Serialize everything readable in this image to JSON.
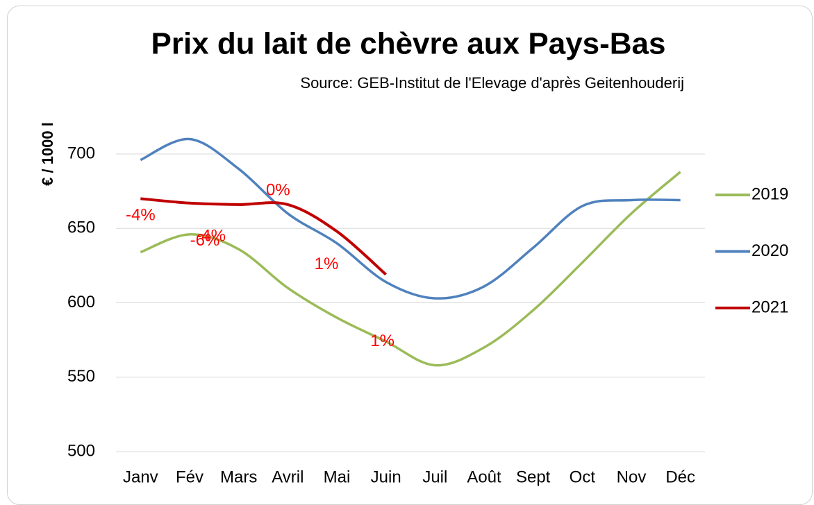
{
  "chart_data": {
    "type": "line",
    "title": "Prix du lait de chèvre aux Pays-Bas",
    "subtitle": "Source: GEB-Institut de l'Elevage d'après Geitenhouderij",
    "y_label": "€ / 1000 l",
    "categories": [
      "Janv",
      "Fév",
      "Mars",
      "Avril",
      "Mai",
      "Juin",
      "Juil",
      "Août",
      "Sept",
      "Oct",
      "Nov",
      "Déc"
    ],
    "series": [
      {
        "name": "2019",
        "color": "#9bbb59",
        "values": [
          634,
          646,
          636,
          610,
          590,
          574,
          558,
          570,
          595,
          627,
          660,
          688
        ]
      },
      {
        "name": "2020",
        "color": "#4f81bd",
        "values": [
          696,
          710,
          690,
          660,
          640,
          614,
          603,
          611,
          637,
          665,
          669,
          669
        ]
      },
      {
        "name": "2021",
        "color": "#c00000",
        "values": [
          670,
          667,
          666,
          666,
          648,
          619,
          null,
          null,
          null,
          null,
          null,
          null
        ]
      }
    ],
    "annotations": [
      "-4%",
      "-6%",
      "-4%",
      "0%",
      "1%",
      "1%"
    ],
    "annotation_color": "#ff0000",
    "ylim": [
      500,
      700
    ],
    "yticks": [
      500,
      550,
      600,
      650,
      700
    ],
    "grid": true,
    "legend": "right"
  }
}
